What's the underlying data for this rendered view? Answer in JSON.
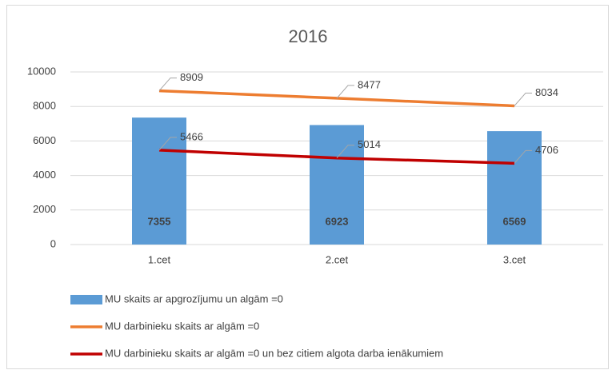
{
  "chart_data": {
    "type": "combo",
    "title": "2016",
    "categories": [
      "1.cet",
      "2.cet",
      "3.cet"
    ],
    "series": [
      {
        "name": "MU skaits ar apgrozījumu un algām =0",
        "type": "bar",
        "color": "#5b9bd5",
        "values": [
          7355,
          6923,
          6569
        ]
      },
      {
        "name": "MU darbinieku skaits ar algām =0",
        "type": "line",
        "color": "#ed7d31",
        "values": [
          8909,
          8477,
          8034
        ]
      },
      {
        "name": "MU darbinieku skaits ar algām =0 un bez citiem algota darba ienākumiem",
        "type": "line",
        "color": "#c00000",
        "values": [
          5466,
          5014,
          4706
        ]
      }
    ],
    "ylim": [
      0,
      10000
    ],
    "yticks": [
      0,
      2000,
      4000,
      6000,
      8000,
      10000
    ],
    "grid": true,
    "legend": "bottom"
  }
}
